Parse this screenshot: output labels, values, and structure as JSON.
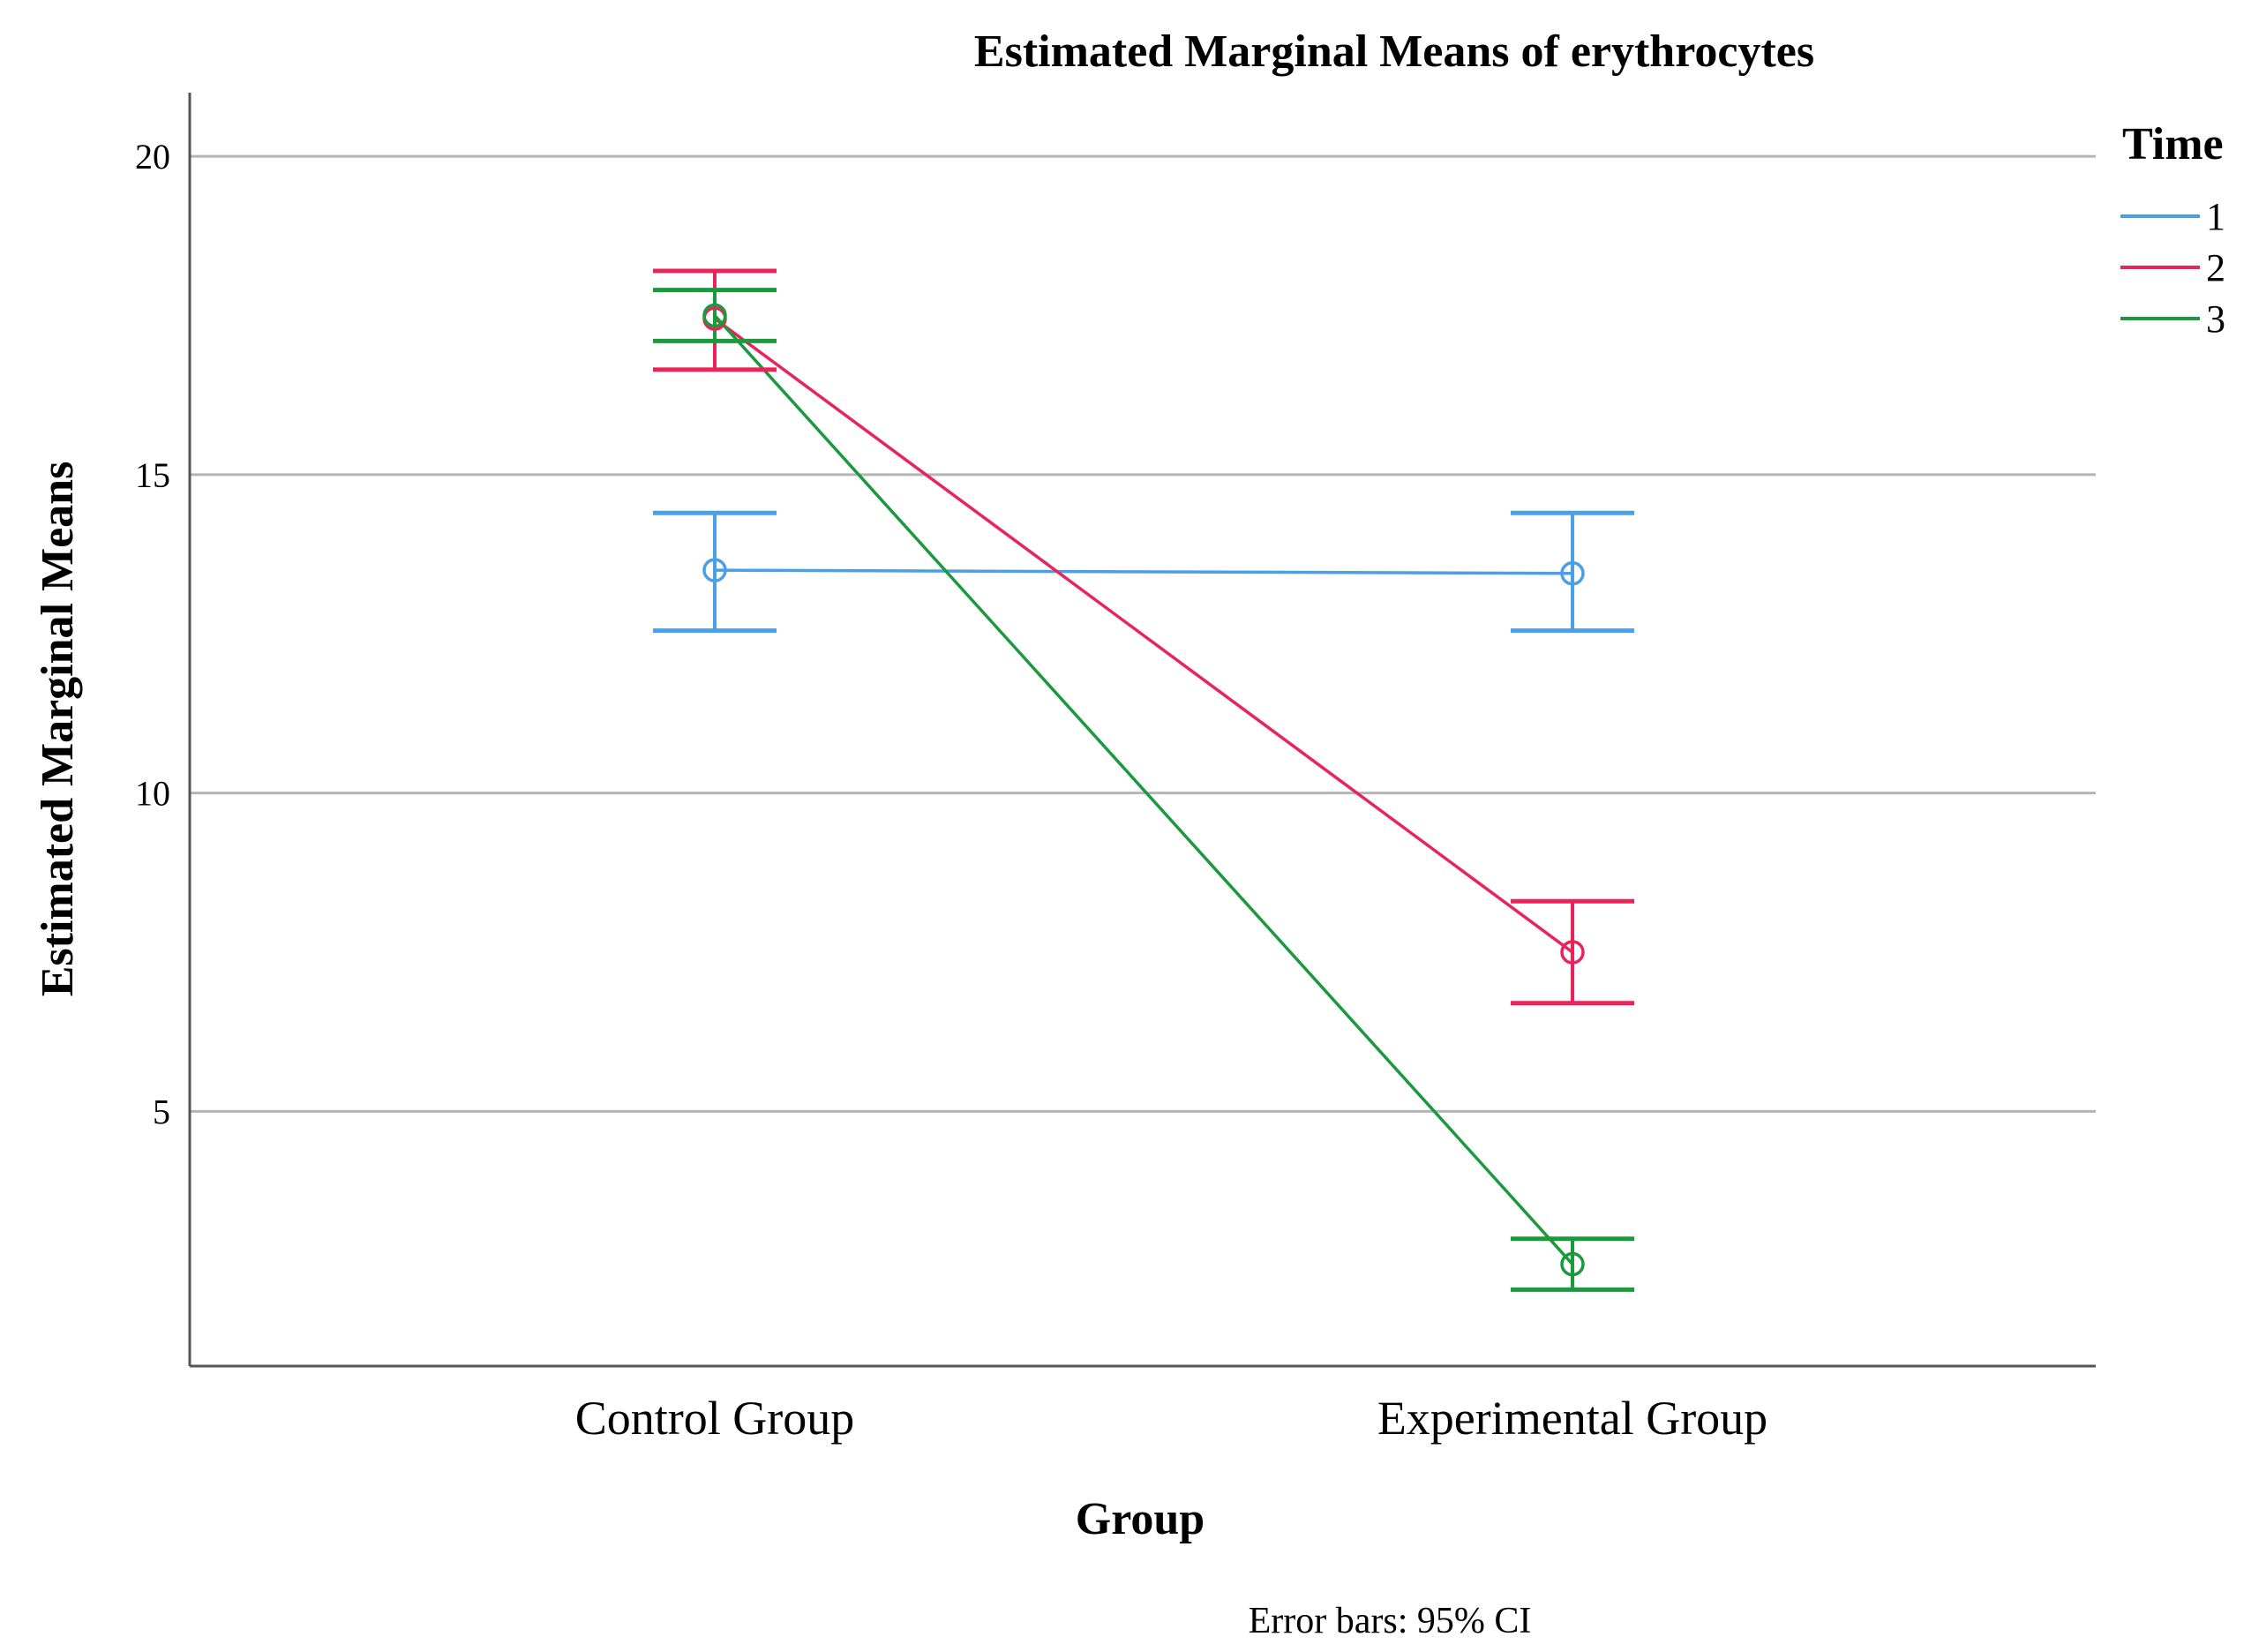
{
  "chart_data": {
    "type": "line",
    "title": "Estimated Marginal Means of erythrocytes",
    "xlabel": "Group",
    "ylabel": "Estimated Marginal Means",
    "categories": [
      "Control Group",
      "Experimental Group"
    ],
    "yticks": [
      5,
      10,
      15,
      20
    ],
    "ylim": [
      1.0,
      21.0
    ],
    "grid": true,
    "legend": {
      "title": "Time",
      "position": "top-right"
    },
    "footnote": "Error bars: 95% CI",
    "series": [
      {
        "name": "1",
        "color": "#4a9fe6",
        "values": [
          13.5,
          13.45
        ],
        "ci_low": [
          12.55,
          12.55
        ],
        "ci_high": [
          14.4,
          14.4
        ]
      },
      {
        "name": "2",
        "color": "#e8245a",
        "values": [
          17.45,
          7.5
        ],
        "ci_low": [
          16.65,
          6.7
        ],
        "ci_high": [
          18.2,
          8.3
        ]
      },
      {
        "name": "3",
        "color": "#1a9a3c",
        "values": [
          17.5,
          2.6
        ],
        "ci_low": [
          17.1,
          2.2
        ],
        "ci_high": [
          17.9,
          3.0
        ]
      }
    ]
  }
}
